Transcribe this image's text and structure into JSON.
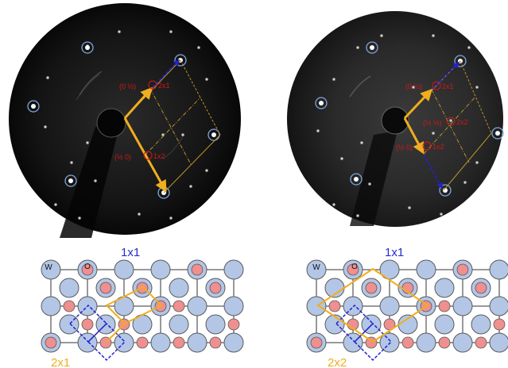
{
  "colors": {
    "background": "#ffffff",
    "screen_dark": "#101010",
    "spot": "#e8e8e8",
    "circled_spot_ring": "#7fa6dc",
    "arrow_gold": "#f0ad1e",
    "arrow_blue": "#2222cc",
    "reciprocal_cell": "#b8922a",
    "leed_label": "#d01818",
    "w_atom_fill": "#b3c6e6",
    "o_atom_fill": "#ef8f8f",
    "atom_outline": "#5a5a5a",
    "unit_cell_1x1": "#2222cc",
    "super_cell": "#f0ad1e",
    "label_1x1": "#2a2acc",
    "label_super": "#f0ad1e"
  },
  "panels": [
    {
      "id": "left",
      "leed_labels": {
        "a_frac": "(0 ½)",
        "a_name": "2x1",
        "b_frac": "(½ 0)",
        "b_name": "1x2"
      },
      "model": {
        "w_label": "W",
        "o_label": "O",
        "cell_1x1_label": "1x1",
        "cell_super_label": "2x1"
      }
    },
    {
      "id": "right",
      "leed_labels": {
        "a_frac": "(0 ½)",
        "a_name": "2x1",
        "c_frac": "(½ ½)",
        "c_name": "2x2",
        "b_frac": "(½ 0)",
        "b_name": "1x2"
      },
      "model": {
        "w_label": "W",
        "o_label": "O",
        "cell_1x1_label": "1x1",
        "cell_super_label": "2x2"
      }
    }
  ],
  "icons": {
    "leed_screen_left": "leed-pattern",
    "leed_screen_right": "leed-pattern",
    "model_left": "surface-atom-model",
    "model_right": "surface-atom-model"
  }
}
